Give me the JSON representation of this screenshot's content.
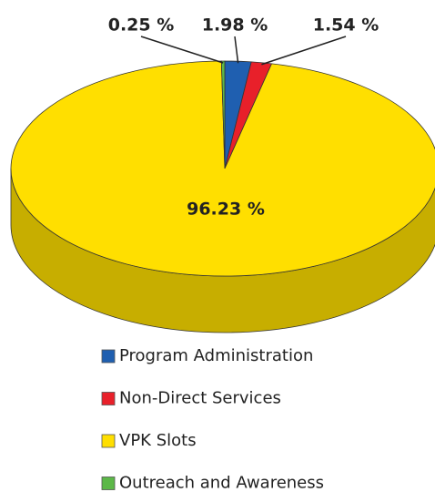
{
  "chart_data": {
    "type": "pie",
    "categories": [
      "Program Administration",
      "Non-Direct Services",
      "VPK Slots",
      "Outreach and Awareness"
    ],
    "values": [
      1.98,
      1.54,
      96.23,
      0.25
    ],
    "value_labels": [
      "1.98 %",
      "1.54 %",
      "96.23 %",
      "0.25 %"
    ],
    "colors": [
      "#1f5fb0",
      "#e8202a",
      "#ffdf00",
      "#5cb848"
    ],
    "legend": "bottom"
  }
}
